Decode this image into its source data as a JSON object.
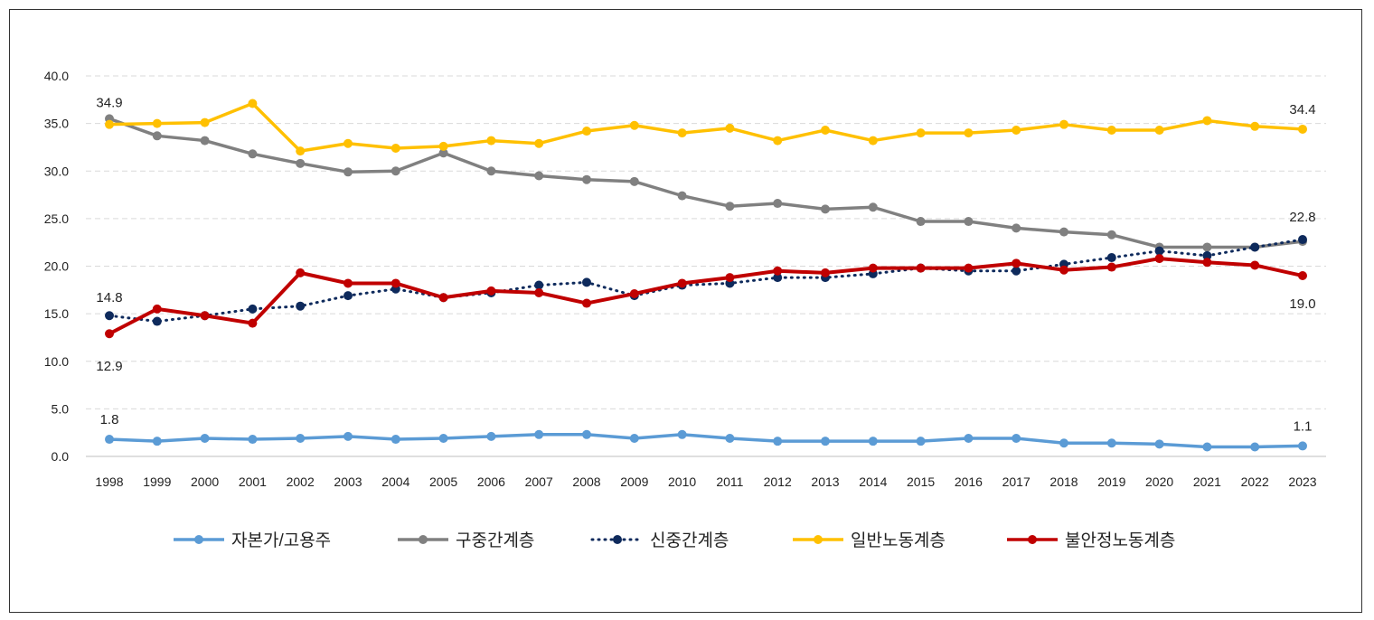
{
  "chart_data": {
    "type": "line",
    "title": "",
    "xlabel": "",
    "ylabel": "",
    "ylim": [
      0,
      40
    ],
    "yticks": [
      "0.0",
      "5.0",
      "10.0",
      "15.0",
      "20.0",
      "25.0",
      "30.0",
      "35.0",
      "40.0"
    ],
    "grid": true,
    "legend_position": "bottom",
    "x": [
      "1998",
      "1999",
      "2000",
      "2001",
      "2002",
      "2003",
      "2004",
      "2005",
      "2006",
      "2007",
      "2008",
      "2009",
      "2010",
      "2011",
      "2012",
      "2013",
      "2014",
      "2015",
      "2016",
      "2017",
      "2018",
      "2019",
      "2020",
      "2021",
      "2022",
      "2023"
    ],
    "series": [
      {
        "name": "자본가/고용주",
        "color": "#5b9bd5",
        "style": "solid",
        "values": [
          1.8,
          1.6,
          1.9,
          1.8,
          1.9,
          2.1,
          1.8,
          1.9,
          2.1,
          2.3,
          2.3,
          1.9,
          2.3,
          1.9,
          1.6,
          1.6,
          1.6,
          1.6,
          1.9,
          1.9,
          1.4,
          1.4,
          1.3,
          1.0,
          1.0,
          1.1
        ]
      },
      {
        "name": "구중간계층",
        "color": "#808080",
        "style": "solid",
        "values": [
          35.5,
          33.7,
          33.2,
          31.8,
          30.8,
          29.9,
          30.0,
          31.9,
          30.0,
          29.5,
          29.1,
          28.9,
          27.4,
          26.3,
          26.6,
          26.0,
          26.2,
          24.7,
          24.7,
          24.0,
          23.6,
          23.3,
          22.0,
          22.0,
          22.0,
          22.6
        ]
      },
      {
        "name": "신중간계층",
        "color": "#0e2a5c",
        "style": "dotted",
        "values": [
          14.8,
          14.2,
          14.8,
          15.5,
          15.8,
          16.9,
          17.6,
          16.7,
          17.2,
          18.0,
          18.3,
          16.9,
          18.0,
          18.2,
          18.8,
          18.8,
          19.2,
          19.8,
          19.5,
          19.5,
          20.2,
          20.9,
          21.6,
          21.1,
          22.0,
          22.8
        ]
      },
      {
        "name": "일반노동계층",
        "color": "#ffc000",
        "style": "solid",
        "values": [
          34.9,
          35.0,
          35.1,
          37.1,
          32.1,
          32.9,
          32.4,
          32.6,
          33.2,
          32.9,
          34.2,
          34.8,
          34.0,
          34.5,
          33.2,
          34.3,
          33.2,
          34.0,
          34.0,
          34.3,
          34.9,
          34.3,
          34.3,
          35.3,
          34.7,
          34.4
        ]
      },
      {
        "name": "불안정노동계층",
        "color": "#c00000",
        "style": "solid",
        "values": [
          12.9,
          15.5,
          14.8,
          14.0,
          19.3,
          18.2,
          18.2,
          16.7,
          17.4,
          17.2,
          16.1,
          17.1,
          18.2,
          18.8,
          19.5,
          19.3,
          19.8,
          19.8,
          19.8,
          20.3,
          19.6,
          19.9,
          20.8,
          20.4,
          20.1,
          19.0
        ]
      }
    ],
    "annotations": [
      {
        "series": "일반노동계층",
        "year": "1998",
        "text": "34.9"
      },
      {
        "series": "신중간계층",
        "year": "1998",
        "text": "14.8"
      },
      {
        "series": "불안정노동계층",
        "year": "1998",
        "text": "12.9"
      },
      {
        "series": "자본가/고용주",
        "year": "1998",
        "text": "1.8"
      },
      {
        "series": "일반노동계층",
        "year": "2023",
        "text": "34.4"
      },
      {
        "series": "신중간계층",
        "year": "2023",
        "text": "22.8"
      },
      {
        "series": "불안정노동계층",
        "year": "2023",
        "text": "19.0"
      },
      {
        "series": "자본가/고용주",
        "year": "2023",
        "text": "1.1"
      }
    ]
  }
}
